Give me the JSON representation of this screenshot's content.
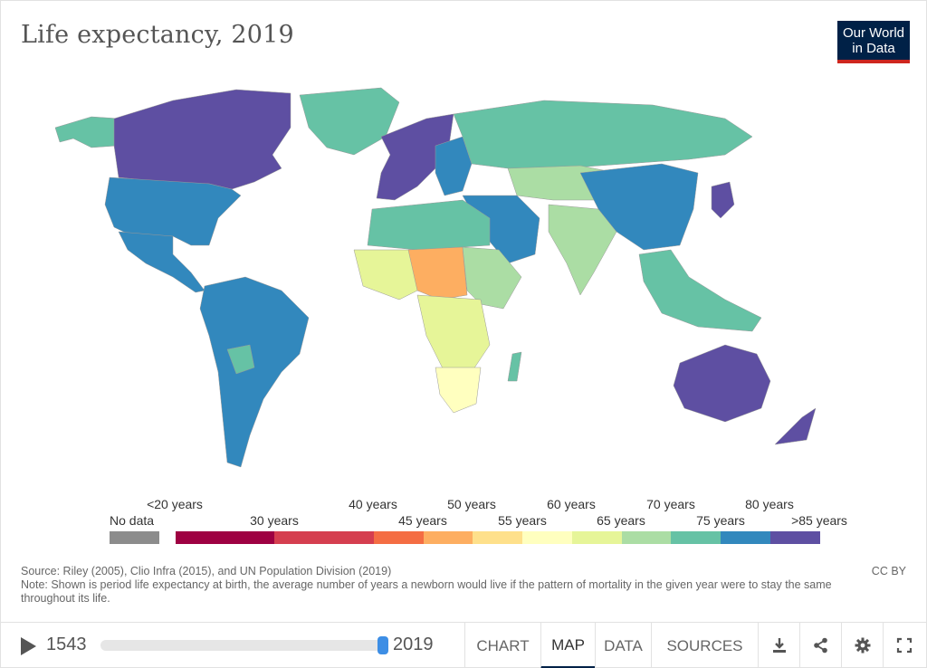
{
  "header": {
    "title": "Life expectancy, 2019",
    "logo_line1": "Our World",
    "logo_line2": "in Data"
  },
  "legend": {
    "no_data_label": "No data",
    "top_labels": [
      "<20 years",
      "40 years",
      "50 years",
      "60 years",
      "70 years",
      "80 years"
    ],
    "bottom_labels": [
      "30 years",
      "45 years",
      "55 years",
      "65 years",
      "75 years",
      ">85 years"
    ],
    "no_data_color": "#8c8c8c",
    "bins": [
      {
        "color": "#9e0142"
      },
      {
        "color": "#d53e4f"
      },
      {
        "color": "#f46d43"
      },
      {
        "color": "#fdae61"
      },
      {
        "color": "#fee08b"
      },
      {
        "color": "#ffffbf"
      },
      {
        "color": "#e6f598"
      },
      {
        "color": "#abdda4"
      },
      {
        "color": "#66c2a5"
      },
      {
        "color": "#3288bd"
      },
      {
        "color": "#5e4fa2"
      }
    ]
  },
  "map_regions": {
    "north_america_north": "#5e4fa2",
    "north_america_south": "#3288bd",
    "alaska_greenland": "#66c2a5",
    "south_america": "#3288bd",
    "europe_west": "#5e4fa2",
    "europe_east": "#3288bd",
    "russia": "#66c2a5",
    "central_asia": "#abdda4",
    "china": "#3288bd",
    "japan": "#5e4fa2",
    "india": "#abdda4",
    "north_africa": "#66c2a5",
    "west_africa": "#e6f598",
    "sahel": "#fdae61",
    "central_africa": "#e6f598",
    "southern_africa": "#ffffbf",
    "australia": "#5e4fa2",
    "southeast_asia": "#66c2a5"
  },
  "footer": {
    "source": "Source: Riley (2005), Clio Infra (2015), and UN Population Division (2019)",
    "note": "Note: Shown is period life expectancy at birth, the average number of years a newborn would live if the pattern of mortality in the given year were to stay the same throughout its life.",
    "license": "CC BY"
  },
  "controls": {
    "start_year": "1543",
    "end_year": "2019",
    "tabs": [
      "CHART",
      "MAP",
      "DATA",
      "SOURCES"
    ],
    "active_tab": "MAP",
    "icons": [
      "download-icon",
      "share-icon",
      "settings-icon",
      "fullscreen-icon"
    ]
  }
}
